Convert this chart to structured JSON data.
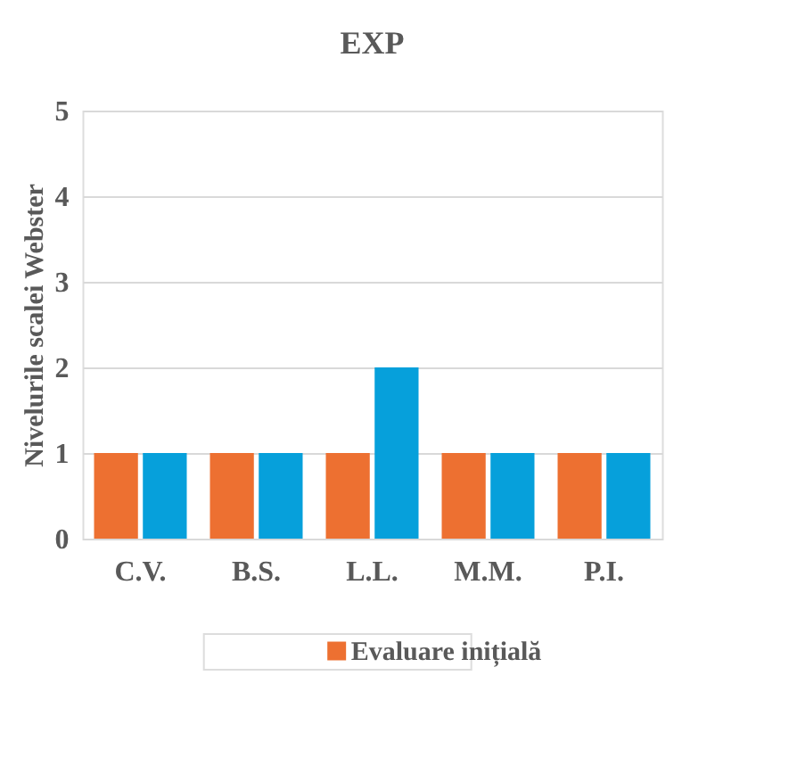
{
  "chart_data": {
    "type": "bar",
    "title": "EXP",
    "ylabel": "Nivelurile scalei Webster",
    "categories": [
      "C.V.",
      "B.S.",
      "L.L.",
      "M.M.",
      "P.I."
    ],
    "series": [
      {
        "name": "Evaluare inițială",
        "color": "#ed7031",
        "values": [
          1,
          1,
          1,
          1,
          1
        ]
      },
      {
        "color": "#06a0db",
        "values": [
          1,
          1,
          2,
          1,
          1
        ]
      }
    ],
    "ylim": [
      0,
      5
    ],
    "yticks": [
      0,
      1,
      2,
      3,
      4,
      5
    ],
    "grid": "y",
    "legend": "bottom"
  }
}
